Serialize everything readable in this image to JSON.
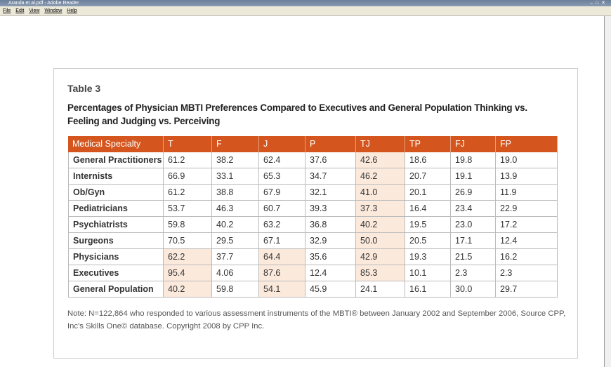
{
  "window": {
    "title": "Aranda et al.pdf - Adobe Reader",
    "menu": [
      "File",
      "Edit",
      "View",
      "Window",
      "Help"
    ]
  },
  "document": {
    "table_label": "Table 3",
    "caption_lines": [
      "Percentages of Physician MBTI Preferences Compared to Executives and General Population Thinking vs.",
      "Feeling and Judging vs. Perceiving"
    ],
    "table": {
      "header": [
        "Medical Specialty",
        "T",
        "F",
        "J",
        "P",
        "TJ",
        "TP",
        "FJ",
        "FP"
      ],
      "rows": [
        [
          "General Practitioners",
          "61.2",
          "38.2",
          "62.4",
          "37.6",
          "42.6",
          "18.6",
          "19.8",
          "19.0"
        ],
        [
          "Internists",
          "66.9",
          "33.1",
          "65.3",
          "34.7",
          "46.2",
          "20.7",
          "19.1",
          "13.9"
        ],
        [
          "Ob/Gyn",
          "61.2",
          "38.8",
          "67.9",
          "32.1",
          "41.0",
          "20.1",
          "26.9",
          "11.9"
        ],
        [
          "Pediatricians",
          "53.7",
          "46.3",
          "60.7",
          "39.3",
          "37.3",
          "16.4",
          "23.4",
          "22.9"
        ],
        [
          "Psychiatrists",
          "59.8",
          "40.2",
          "63.2",
          "36.8",
          "40.2",
          "19.5",
          "23.0",
          "17.2"
        ],
        [
          "Surgeons",
          "70.5",
          "29.5",
          "67.1",
          "32.9",
          "50.0",
          "20.5",
          "17.1",
          "12.4"
        ],
        [
          "Physicians",
          "62.2",
          "37.7",
          "64.4",
          "35.6",
          "42.9",
          "19.3",
          "21.5",
          "16.2"
        ],
        [
          "Executives",
          "95.4",
          "4.06",
          "87.6",
          "12.4",
          "85.3",
          "10.1",
          "2.3",
          "2.3"
        ],
        [
          "General Population",
          "40.2",
          "59.8",
          "54.1",
          "45.9",
          "24.1",
          "16.1",
          "30.0",
          "29.7"
        ]
      ]
    },
    "note_lines": [
      "Note:  N=122,864 who responded to various assessment instruments of the MBTI® between January 2002 and September 2006, Source CPP,",
      "Inc's Skills One© database. Copyright 2008 by CPP Inc."
    ]
  }
}
